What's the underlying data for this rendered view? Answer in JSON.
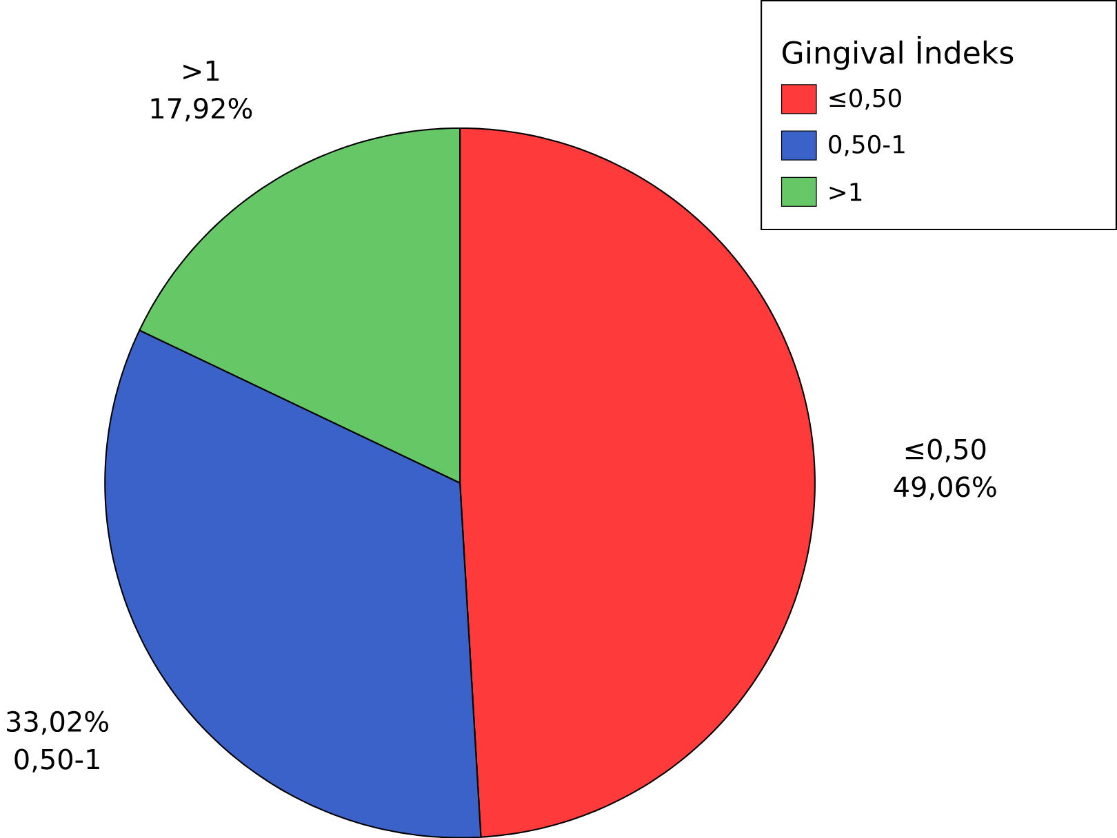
{
  "chart_data": {
    "type": "pie",
    "legend_title": "Gingival İndeks",
    "categories": [
      "≤0,50",
      "0,50-1",
      ">1"
    ],
    "values": [
      49.06,
      33.02,
      17.92
    ],
    "colors": [
      "#fe3a3a",
      "#3a62c8",
      "#65c765"
    ],
    "value_labels": [
      "49,06%",
      "33,02%",
      "17,92%"
    ],
    "legend": "top right"
  }
}
